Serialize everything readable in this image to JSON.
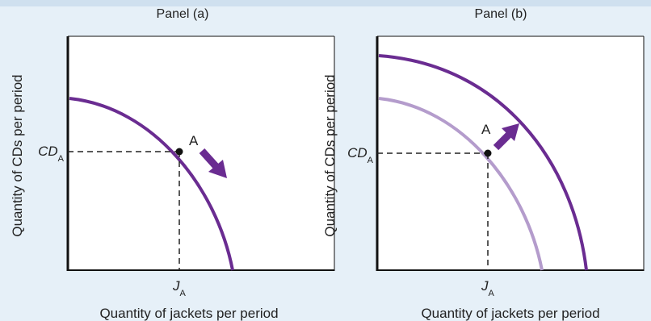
{
  "panels": [
    {
      "title": "Panel (a)",
      "ylabel": "Quantity of CDs per period",
      "xlabel": "Quantity of jackets per period",
      "y_tick": {
        "main": "CD",
        "sub": "A"
      },
      "x_tick": {
        "main": "J",
        "sub": "A"
      },
      "point_label": "A"
    },
    {
      "title": "Panel (b)",
      "ylabel": "Quantity of CDs per period",
      "xlabel": "Quantity of jackets per period",
      "y_tick": {
        "main": "CD",
        "sub": "A"
      },
      "x_tick": {
        "main": "J",
        "sub": "A"
      },
      "point_label": "A"
    }
  ],
  "colors": {
    "curve": "#6a2c91",
    "curve_original": "#b49ccc",
    "arrow": "#6a2c91",
    "plot_bg": "#ffffff",
    "axis": "#111111",
    "dashed": "#222222"
  }
}
